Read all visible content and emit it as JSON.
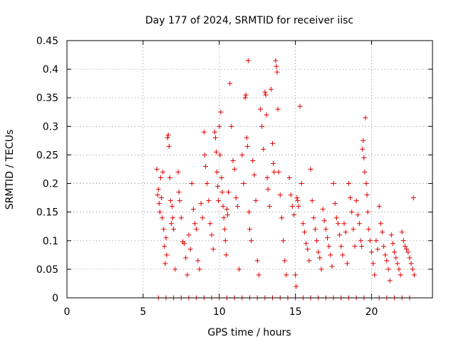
{
  "chart_data": {
    "type": "scatter",
    "title": "Day 177 of 2024, SRMTID for receiver iisc",
    "xlabel": "GPS time / hours",
    "ylabel": "SRMTID / TECUs",
    "xlim": [
      0,
      24
    ],
    "ylim": [
      0,
      0.45
    ],
    "x_ticks": [
      0,
      5,
      10,
      15,
      20
    ],
    "y_ticks": [
      0,
      0.05,
      0.1,
      0.15,
      0.2,
      0.25,
      0.3,
      0.35,
      0.4,
      0.45
    ],
    "x_tick_labels": [
      "0",
      "5",
      "10",
      "15",
      "20"
    ],
    "y_tick_labels": [
      "0",
      "0.05",
      "0.1",
      "0.15",
      "0.2",
      "0.25",
      "0.3",
      "0.35",
      "0.4",
      "0.45"
    ],
    "grid": true,
    "marker": "+",
    "color": "#e00000",
    "series": [
      {
        "name": "SRMTID",
        "points": [
          [
            5.9,
            0.225
          ],
          [
            5.95,
            0.18
          ],
          [
            6.0,
            0.19
          ],
          [
            6.05,
            0.165
          ],
          [
            6.1,
            0.15
          ],
          [
            6.15,
            0.21
          ],
          [
            6.2,
            0.175
          ],
          [
            6.25,
            0.14
          ],
          [
            6.3,
            0.22
          ],
          [
            6.35,
            0.12
          ],
          [
            6.4,
            0.09
          ],
          [
            6.45,
            0.06
          ],
          [
            6.5,
            0.105
          ],
          [
            6.55,
            0.075
          ],
          [
            6.6,
            0.28
          ],
          [
            6.65,
            0.285
          ],
          [
            6.7,
            0.265
          ],
          [
            6.75,
            0.21
          ],
          [
            6.8,
            0.17
          ],
          [
            6.85,
            0.13
          ],
          [
            6.9,
            0.16
          ],
          [
            6.95,
            0.14
          ],
          [
            7.0,
            0.12
          ],
          [
            7.1,
            0.05
          ],
          [
            7.3,
            0.22
          ],
          [
            7.35,
            0.185
          ],
          [
            7.4,
            0.17
          ],
          [
            7.5,
            0.14
          ],
          [
            7.6,
            0.098
          ],
          [
            7.7,
            0.095
          ],
          [
            7.8,
            0.07
          ],
          [
            7.9,
            0.04
          ],
          [
            8.0,
            0.11
          ],
          [
            8.1,
            0.085
          ],
          [
            8.2,
            0.2
          ],
          [
            8.3,
            0.155
          ],
          [
            8.4,
            0.13
          ],
          [
            8.5,
            0.12
          ],
          [
            8.6,
            0.065
          ],
          [
            8.7,
            0.05
          ],
          [
            8.8,
            0.165
          ],
          [
            8.9,
            0.14
          ],
          [
            9.0,
            0.29
          ],
          [
            9.05,
            0.25
          ],
          [
            9.1,
            0.23
          ],
          [
            9.2,
            0.2
          ],
          [
            9.3,
            0.17
          ],
          [
            9.4,
            0.13
          ],
          [
            9.5,
            0.11
          ],
          [
            9.6,
            0.085
          ],
          [
            9.7,
            0.29
          ],
          [
            9.75,
            0.28
          ],
          [
            9.8,
            0.255
          ],
          [
            9.85,
            0.22
          ],
          [
            9.9,
            0.195
          ],
          [
            9.95,
            0.17
          ],
          [
            10.0,
            0.3
          ],
          [
            10.05,
            0.25
          ],
          [
            10.1,
            0.325
          ],
          [
            10.15,
            0.21
          ],
          [
            10.2,
            0.185
          ],
          [
            10.25,
            0.16
          ],
          [
            10.3,
            0.14
          ],
          [
            10.35,
            0.12
          ],
          [
            10.4,
            0.1
          ],
          [
            10.45,
            0.075
          ],
          [
            10.5,
            0.155
          ],
          [
            10.55,
            0.145
          ],
          [
            10.6,
            0.185
          ],
          [
            10.7,
            0.375
          ],
          [
            10.8,
            0.3
          ],
          [
            10.9,
            0.24
          ],
          [
            11.0,
            0.225
          ],
          [
            11.1,
            0.175
          ],
          [
            11.2,
            0.16
          ],
          [
            11.3,
            0.05
          ],
          [
            11.5,
            0.25
          ],
          [
            11.6,
            0.2
          ],
          [
            11.7,
            0.35
          ],
          [
            11.75,
            0.355
          ],
          [
            11.8,
            0.28
          ],
          [
            11.85,
            0.265
          ],
          [
            11.9,
            0.415
          ],
          [
            11.95,
            0.15
          ],
          [
            12.0,
            0.12
          ],
          [
            12.1,
            0.1
          ],
          [
            12.2,
            0.24
          ],
          [
            12.3,
            0.215
          ],
          [
            12.4,
            0.17
          ],
          [
            12.5,
            0.065
          ],
          [
            12.6,
            0.04
          ],
          [
            12.7,
            0.33
          ],
          [
            12.8,
            0.3
          ],
          [
            12.9,
            0.26
          ],
          [
            13.0,
            0.36
          ],
          [
            13.05,
            0.355
          ],
          [
            13.1,
            0.32
          ],
          [
            13.15,
            0.21
          ],
          [
            13.2,
            0.19
          ],
          [
            13.3,
            0.16
          ],
          [
            13.4,
            0.365
          ],
          [
            13.5,
            0.27
          ],
          [
            13.55,
            0.235
          ],
          [
            13.6,
            0.22
          ],
          [
            13.7,
            0.415
          ],
          [
            13.75,
            0.405
          ],
          [
            13.8,
            0.395
          ],
          [
            13.85,
            0.33
          ],
          [
            13.9,
            0.22
          ],
          [
            14.0,
            0.18
          ],
          [
            14.1,
            0.14
          ],
          [
            14.2,
            0.1
          ],
          [
            14.3,
            0.065
          ],
          [
            14.4,
            0.04
          ],
          [
            14.6,
            0.21
          ],
          [
            14.7,
            0.18
          ],
          [
            14.8,
            0.16
          ],
          [
            14.9,
            0.145
          ],
          [
            15.0,
            0.04
          ],
          [
            15.05,
            0.02
          ],
          [
            15.1,
            0.175
          ],
          [
            15.15,
            0.17
          ],
          [
            15.2,
            0.16
          ],
          [
            15.3,
            0.335
          ],
          [
            15.4,
            0.2
          ],
          [
            15.5,
            0.13
          ],
          [
            15.6,
            0.115
          ],
          [
            15.7,
            0.095
          ],
          [
            15.8,
            0.085
          ],
          [
            15.9,
            0.065
          ],
          [
            16.0,
            0.225
          ],
          [
            16.1,
            0.17
          ],
          [
            16.2,
            0.14
          ],
          [
            16.3,
            0.12
          ],
          [
            16.4,
            0.1
          ],
          [
            16.5,
            0.08
          ],
          [
            16.6,
            0.07
          ],
          [
            16.7,
            0.05
          ],
          [
            16.8,
            0.155
          ],
          [
            16.9,
            0.135
          ],
          [
            17.0,
            0.12
          ],
          [
            17.1,
            0.105
          ],
          [
            17.2,
            0.09
          ],
          [
            17.3,
            0.075
          ],
          [
            17.4,
            0.055
          ],
          [
            17.5,
            0.2
          ],
          [
            17.6,
            0.165
          ],
          [
            17.7,
            0.14
          ],
          [
            17.8,
            0.13
          ],
          [
            17.9,
            0.11
          ],
          [
            18.0,
            0.09
          ],
          [
            18.1,
            0.075
          ],
          [
            18.2,
            0.13
          ],
          [
            18.3,
            0.115
          ],
          [
            18.4,
            0.06
          ],
          [
            18.5,
            0.2
          ],
          [
            18.6,
            0.175
          ],
          [
            18.7,
            0.15
          ],
          [
            18.8,
            0.12
          ],
          [
            18.9,
            0.09
          ],
          [
            19.0,
            0.17
          ],
          [
            19.1,
            0.145
          ],
          [
            19.2,
            0.13
          ],
          [
            19.3,
            0.1
          ],
          [
            19.35,
            0.09
          ],
          [
            19.4,
            0.26
          ],
          [
            19.45,
            0.275
          ],
          [
            19.5,
            0.245
          ],
          [
            19.55,
            0.22
          ],
          [
            19.6,
            0.315
          ],
          [
            19.65,
            0.2
          ],
          [
            19.7,
            0.18
          ],
          [
            19.75,
            0.15
          ],
          [
            19.8,
            0.12
          ],
          [
            19.9,
            0.1
          ],
          [
            20.0,
            0.08
          ],
          [
            20.1,
            0.06
          ],
          [
            20.2,
            0.04
          ],
          [
            20.3,
            0.1
          ],
          [
            20.4,
            0.085
          ],
          [
            20.5,
            0.16
          ],
          [
            20.6,
            0.13
          ],
          [
            20.7,
            0.115
          ],
          [
            20.8,
            0.09
          ],
          [
            20.9,
            0.075
          ],
          [
            21.0,
            0.065
          ],
          [
            21.1,
            0.05
          ],
          [
            21.2,
            0.03
          ],
          [
            21.3,
            0.11
          ],
          [
            21.4,
            0.095
          ],
          [
            21.5,
            0.08
          ],
          [
            21.6,
            0.07
          ],
          [
            21.7,
            0.06
          ],
          [
            21.8,
            0.05
          ],
          [
            21.9,
            0.04
          ],
          [
            22.0,
            0.115
          ],
          [
            22.1,
            0.1
          ],
          [
            22.2,
            0.09
          ],
          [
            22.3,
            0.085
          ],
          [
            22.4,
            0.08
          ],
          [
            22.5,
            0.07
          ],
          [
            22.6,
            0.06
          ],
          [
            22.7,
            0.05
          ],
          [
            22.75,
            0.175
          ],
          [
            22.8,
            0.04
          ],
          [
            6.0,
            0.0
          ],
          [
            6.5,
            0.0
          ],
          [
            7.0,
            0.0
          ],
          [
            7.5,
            0.0
          ],
          [
            8.0,
            0.0
          ],
          [
            8.5,
            0.0
          ],
          [
            9.0,
            0.0
          ],
          [
            9.5,
            0.0
          ],
          [
            10.0,
            0.0
          ],
          [
            10.5,
            0.0
          ],
          [
            11.0,
            0.0
          ],
          [
            11.5,
            0.0
          ],
          [
            12.0,
            0.0
          ],
          [
            12.5,
            0.0
          ],
          [
            13.0,
            0.0
          ],
          [
            13.5,
            0.0
          ],
          [
            14.0,
            0.0
          ],
          [
            14.5,
            0.0
          ],
          [
            15.0,
            0.0
          ],
          [
            15.5,
            0.0
          ],
          [
            16.0,
            0.0
          ],
          [
            16.5,
            0.0
          ],
          [
            17.0,
            0.0
          ],
          [
            17.5,
            0.0
          ],
          [
            18.0,
            0.0
          ],
          [
            18.5,
            0.0
          ],
          [
            19.0,
            0.0
          ],
          [
            19.5,
            0.0
          ],
          [
            20.0,
            0.0
          ],
          [
            20.5,
            0.0
          ],
          [
            21.0,
            0.0
          ],
          [
            21.5,
            0.0
          ],
          [
            22.0,
            0.0
          ],
          [
            22.5,
            0.0
          ]
        ]
      }
    ]
  }
}
